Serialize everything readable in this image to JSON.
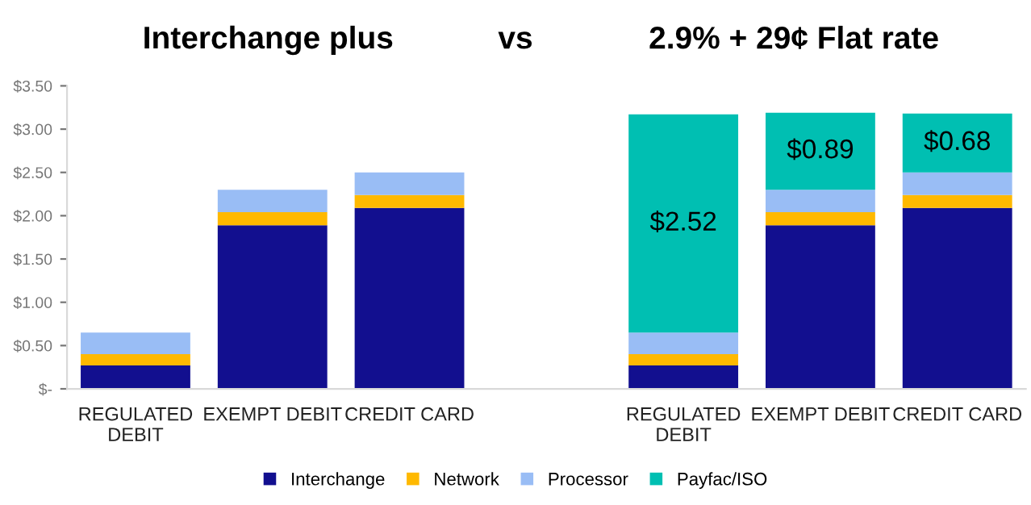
{
  "chart_data": {
    "type": "bar",
    "stacked": true,
    "title": "Interchange plus",
    "annotations": [
      "vs",
      "2.9% + 29¢ Flat rate"
    ],
    "categories": [
      "REGULATED\nDEBIT",
      "EXEMPT DEBIT",
      "CREDIT CARD",
      null,
      "REGULATED\nDEBIT",
      "EXEMPT DEBIT",
      "CREDIT CARD"
    ],
    "series": [
      {
        "name": "Interchange",
        "color": "#120f8f",
        "values": [
          0.27,
          1.89,
          2.09,
          null,
          0.27,
          1.89,
          2.09
        ]
      },
      {
        "name": "Network",
        "color": "#ffb900",
        "values": [
          0.13,
          0.15,
          0.15,
          null,
          0.13,
          0.15,
          0.15
        ]
      },
      {
        "name": "Processor",
        "color": "#99bdf5",
        "values": [
          0.25,
          0.26,
          0.26,
          null,
          0.25,
          0.26,
          0.26
        ]
      },
      {
        "name": "Payfac/ISO",
        "color": "#00bfb2",
        "values": [
          null,
          null,
          null,
          null,
          2.52,
          0.89,
          0.68
        ],
        "value_labels": [
          null,
          null,
          null,
          null,
          "$2.52",
          "$0.89",
          "$0.68"
        ]
      }
    ],
    "ylim": [
      0,
      3.5
    ],
    "yticks": [
      {
        "value": 0,
        "label": "$-"
      },
      {
        "value": 0.5,
        "label": "$0.50"
      },
      {
        "value": 1,
        "label": "$1.00"
      },
      {
        "value": 1.5,
        "label": "$1.50"
      },
      {
        "value": 2,
        "label": "$2.00"
      },
      {
        "value": 2.5,
        "label": "$2.50"
      },
      {
        "value": 3,
        "label": "$3.00"
      },
      {
        "value": 3.5,
        "label": "$3.50"
      }
    ],
    "grid": false,
    "legend": "bottom"
  }
}
